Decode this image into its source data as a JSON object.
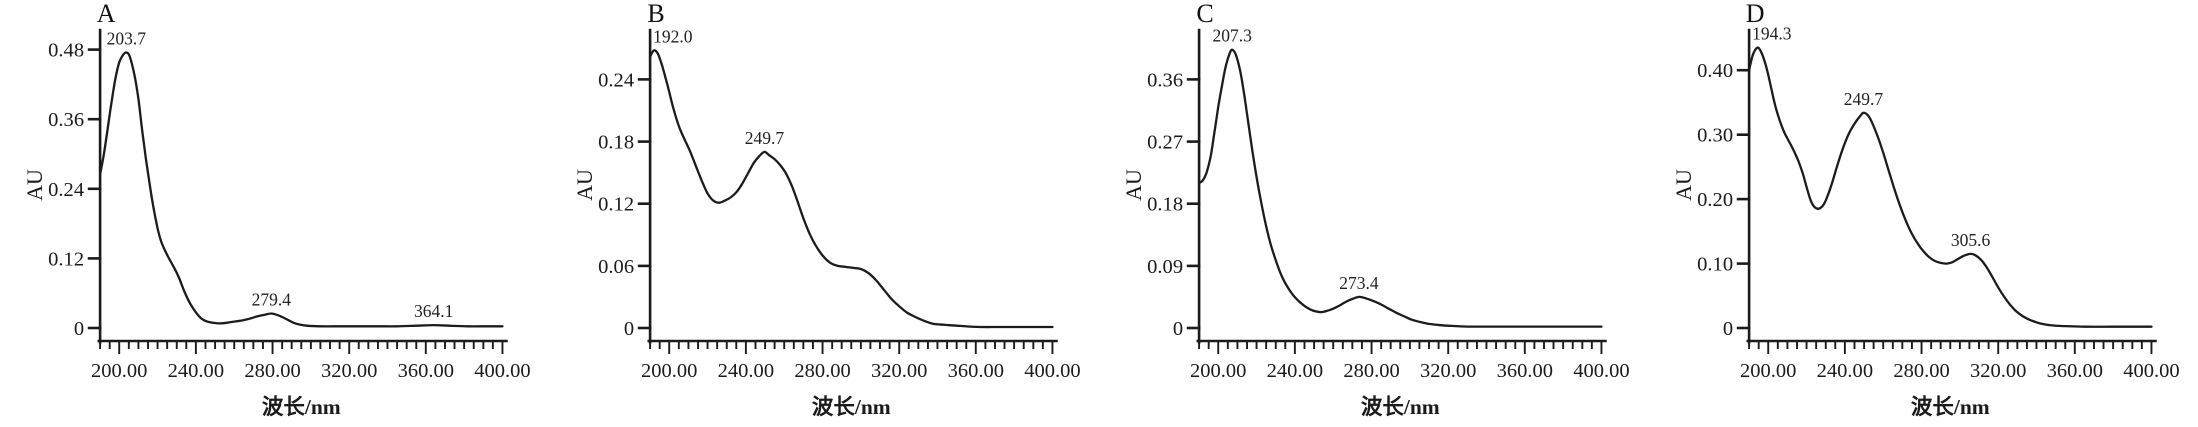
{
  "figure": {
    "background": "#ffffff",
    "line_color": "#1c1c1c",
    "x_axis_title": "波长/nm",
    "y_axis_title": "AU",
    "x_range_nm": [
      190,
      400
    ],
    "x_ticks_nm": [
      200,
      240,
      280,
      320,
      360,
      400
    ],
    "x_tick_labels": [
      "200.00",
      "240.00",
      "280.00",
      "320.00",
      "360.00",
      "400.00"
    ],
    "x_minor_step_nm": 5,
    "grid": "off",
    "legend": "none"
  },
  "chart_data": [
    {
      "panel": "A",
      "type": "line",
      "title": "A",
      "xlabel": "波长/nm",
      "ylabel": "AU",
      "xlim": [
        190,
        400
      ],
      "ylim": [
        0,
        0.5
      ],
      "y_ticks": [
        0,
        0.12,
        0.24,
        0.36,
        0.48
      ],
      "y_tick_labels": [
        "0",
        "0.12",
        "0.24",
        "0.36",
        "0.48"
      ],
      "peaks": [
        {
          "label": "203.7",
          "nm": 203.7,
          "au": 0.475
        },
        {
          "label": "279.4",
          "nm": 279.4,
          "au": 0.025
        },
        {
          "label": "364.1",
          "nm": 364.1,
          "au": 0.005
        }
      ],
      "points": [
        [
          190,
          0.265
        ],
        [
          192,
          0.3
        ],
        [
          194,
          0.345
        ],
        [
          196,
          0.39
        ],
        [
          198,
          0.43
        ],
        [
          200,
          0.458
        ],
        [
          202,
          0.471
        ],
        [
          203.7,
          0.475
        ],
        [
          205.5,
          0.468
        ],
        [
          208,
          0.435
        ],
        [
          210,
          0.395
        ],
        [
          212,
          0.34
        ],
        [
          214,
          0.29
        ],
        [
          216,
          0.245
        ],
        [
          218,
          0.205
        ],
        [
          220,
          0.172
        ],
        [
          222,
          0.148
        ],
        [
          225,
          0.126
        ],
        [
          228,
          0.108
        ],
        [
          231,
          0.088
        ],
        [
          234,
          0.063
        ],
        [
          237,
          0.042
        ],
        [
          240,
          0.027
        ],
        [
          243,
          0.016
        ],
        [
          246,
          0.011
        ],
        [
          249,
          0.009
        ],
        [
          252,
          0.008
        ],
        [
          256,
          0.009
        ],
        [
          260,
          0.011
        ],
        [
          264,
          0.013
        ],
        [
          268,
          0.016
        ],
        [
          272,
          0.02
        ],
        [
          276,
          0.023
        ],
        [
          279.4,
          0.025
        ],
        [
          282,
          0.023
        ],
        [
          285,
          0.019
        ],
        [
          288,
          0.014
        ],
        [
          291,
          0.009
        ],
        [
          294,
          0.006
        ],
        [
          298,
          0.004
        ],
        [
          305,
          0.003
        ],
        [
          315,
          0.003
        ],
        [
          325,
          0.003
        ],
        [
          335,
          0.003
        ],
        [
          345,
          0.003
        ],
        [
          355,
          0.004
        ],
        [
          364.1,
          0.005
        ],
        [
          372,
          0.004
        ],
        [
          382,
          0.003
        ],
        [
          392,
          0.003
        ],
        [
          400,
          0.003
        ]
      ]
    },
    {
      "panel": "B",
      "type": "line",
      "title": "B",
      "xlabel": "波长/nm",
      "ylabel": "AU",
      "xlim": [
        190,
        400
      ],
      "ylim": [
        0,
        0.28
      ],
      "y_ticks": [
        0,
        0.06,
        0.12,
        0.18,
        0.24
      ],
      "y_tick_labels": [
        "0",
        "0.06",
        "0.12",
        "0.18",
        "0.24"
      ],
      "peaks": [
        {
          "label": "192.0",
          "nm": 192.0,
          "au": 0.268
        },
        {
          "label": "249.7",
          "nm": 249.7,
          "au": 0.17
        }
      ],
      "points": [
        [
          190,
          0.262
        ],
        [
          192,
          0.268
        ],
        [
          194,
          0.265
        ],
        [
          196,
          0.255
        ],
        [
          198,
          0.242
        ],
        [
          200,
          0.228
        ],
        [
          202,
          0.213
        ],
        [
          205,
          0.195
        ],
        [
          208,
          0.182
        ],
        [
          211,
          0.17
        ],
        [
          214,
          0.156
        ],
        [
          217,
          0.142
        ],
        [
          220,
          0.13
        ],
        [
          223,
          0.123
        ],
        [
          226,
          0.121
        ],
        [
          229,
          0.123
        ],
        [
          232,
          0.126
        ],
        [
          235,
          0.131
        ],
        [
          238,
          0.139
        ],
        [
          241,
          0.149
        ],
        [
          244,
          0.159
        ],
        [
          247,
          0.166
        ],
        [
          249.7,
          0.17
        ],
        [
          252,
          0.167
        ],
        [
          255,
          0.163
        ],
        [
          258,
          0.157
        ],
        [
          261,
          0.149
        ],
        [
          264,
          0.137
        ],
        [
          267,
          0.122
        ],
        [
          270,
          0.106
        ],
        [
          273,
          0.092
        ],
        [
          276,
          0.081
        ],
        [
          280,
          0.07
        ],
        [
          284,
          0.063
        ],
        [
          288,
          0.06
        ],
        [
          292,
          0.059
        ],
        [
          296,
          0.058
        ],
        [
          300,
          0.057
        ],
        [
          304,
          0.053
        ],
        [
          308,
          0.046
        ],
        [
          312,
          0.037
        ],
        [
          316,
          0.028
        ],
        [
          320,
          0.021
        ],
        [
          324,
          0.015
        ],
        [
          328,
          0.011
        ],
        [
          333,
          0.007
        ],
        [
          338,
          0.004
        ],
        [
          344,
          0.003
        ],
        [
          352,
          0.002
        ],
        [
          362,
          0.001
        ],
        [
          375,
          0.001
        ],
        [
          400,
          0.001
        ]
      ]
    },
    {
      "panel": "C",
      "type": "line",
      "title": "C",
      "xlabel": "波长/nm",
      "ylabel": "AU",
      "xlim": [
        190,
        400
      ],
      "ylim": [
        0,
        0.42
      ],
      "y_ticks": [
        0,
        0.09,
        0.18,
        0.27,
        0.36
      ],
      "y_tick_labels": [
        "0",
        "0.09",
        "0.18",
        "0.27",
        "0.36"
      ],
      "peaks": [
        {
          "label": "207.3",
          "nm": 207.3,
          "au": 0.403
        },
        {
          "label": "273.4",
          "nm": 273.4,
          "au": 0.045
        }
      ],
      "points": [
        [
          190,
          0.21
        ],
        [
          192,
          0.214
        ],
        [
          194,
          0.226
        ],
        [
          196,
          0.248
        ],
        [
          198,
          0.283
        ],
        [
          200,
          0.32
        ],
        [
          202,
          0.352
        ],
        [
          204,
          0.38
        ],
        [
          206,
          0.398
        ],
        [
          207.3,
          0.403
        ],
        [
          209,
          0.397
        ],
        [
          211,
          0.378
        ],
        [
          213,
          0.348
        ],
        [
          215,
          0.31
        ],
        [
          218,
          0.253
        ],
        [
          221,
          0.203
        ],
        [
          224,
          0.16
        ],
        [
          227,
          0.125
        ],
        [
          230,
          0.098
        ],
        [
          233,
          0.076
        ],
        [
          236,
          0.06
        ],
        [
          239,
          0.048
        ],
        [
          242,
          0.039
        ],
        [
          245,
          0.032
        ],
        [
          248,
          0.027
        ],
        [
          251,
          0.024
        ],
        [
          254,
          0.023
        ],
        [
          257,
          0.025
        ],
        [
          260,
          0.028
        ],
        [
          263,
          0.032
        ],
        [
          266,
          0.037
        ],
        [
          269,
          0.041
        ],
        [
          273.4,
          0.045
        ],
        [
          277,
          0.043
        ],
        [
          281,
          0.039
        ],
        [
          285,
          0.034
        ],
        [
          289,
          0.028
        ],
        [
          293,
          0.022
        ],
        [
          297,
          0.017
        ],
        [
          301,
          0.012
        ],
        [
          305,
          0.009
        ],
        [
          310,
          0.006
        ],
        [
          316,
          0.004
        ],
        [
          322,
          0.003
        ],
        [
          330,
          0.002
        ],
        [
          345,
          0.002
        ],
        [
          365,
          0.002
        ],
        [
          385,
          0.002
        ],
        [
          400,
          0.002
        ]
      ]
    },
    {
      "panel": "D",
      "type": "line",
      "title": "D",
      "xlabel": "波长/nm",
      "ylabel": "AU",
      "xlim": [
        190,
        400
      ],
      "ylim": [
        0,
        0.45
      ],
      "y_ticks": [
        0,
        0.1,
        0.2,
        0.3,
        0.4
      ],
      "y_tick_labels": [
        "0",
        "0.10",
        "0.20",
        "0.30",
        "0.40"
      ],
      "peaks": [
        {
          "label": "194.3",
          "nm": 194.3,
          "au": 0.435
        },
        {
          "label": "249.7",
          "nm": 249.7,
          "au": 0.334
        },
        {
          "label": "305.6",
          "nm": 305.6,
          "au": 0.115
        }
      ],
      "points": [
        [
          190,
          0.4
        ],
        [
          192,
          0.424
        ],
        [
          194.3,
          0.435
        ],
        [
          196,
          0.43
        ],
        [
          198,
          0.415
        ],
        [
          200,
          0.393
        ],
        [
          202,
          0.366
        ],
        [
          204,
          0.341
        ],
        [
          206,
          0.322
        ],
        [
          208,
          0.306
        ],
        [
          210,
          0.294
        ],
        [
          212,
          0.283
        ],
        [
          214,
          0.271
        ],
        [
          216,
          0.257
        ],
        [
          218,
          0.24
        ],
        [
          220,
          0.219
        ],
        [
          222,
          0.199
        ],
        [
          224,
          0.188
        ],
        [
          226,
          0.185
        ],
        [
          228,
          0.188
        ],
        [
          230,
          0.198
        ],
        [
          233,
          0.222
        ],
        [
          236,
          0.252
        ],
        [
          239,
          0.279
        ],
        [
          242,
          0.301
        ],
        [
          245,
          0.317
        ],
        [
          248,
          0.329
        ],
        [
          249.7,
          0.334
        ],
        [
          252,
          0.33
        ],
        [
          254,
          0.32
        ],
        [
          257,
          0.298
        ],
        [
          260,
          0.272
        ],
        [
          263,
          0.243
        ],
        [
          266,
          0.214
        ],
        [
          269,
          0.188
        ],
        [
          272,
          0.165
        ],
        [
          275,
          0.146
        ],
        [
          278,
          0.131
        ],
        [
          281,
          0.119
        ],
        [
          284,
          0.11
        ],
        [
          287,
          0.104
        ],
        [
          290,
          0.101
        ],
        [
          293,
          0.1
        ],
        [
          296,
          0.102
        ],
        [
          299,
          0.107
        ],
        [
          302,
          0.112
        ],
        [
          305.6,
          0.115
        ],
        [
          308,
          0.113
        ],
        [
          311,
          0.106
        ],
        [
          314,
          0.094
        ],
        [
          317,
          0.079
        ],
        [
          320,
          0.063
        ],
        [
          323,
          0.049
        ],
        [
          326,
          0.037
        ],
        [
          329,
          0.027
        ],
        [
          333,
          0.018
        ],
        [
          337,
          0.012
        ],
        [
          342,
          0.007
        ],
        [
          348,
          0.004
        ],
        [
          355,
          0.003
        ],
        [
          365,
          0.002
        ],
        [
          380,
          0.002
        ],
        [
          400,
          0.002
        ]
      ]
    }
  ]
}
